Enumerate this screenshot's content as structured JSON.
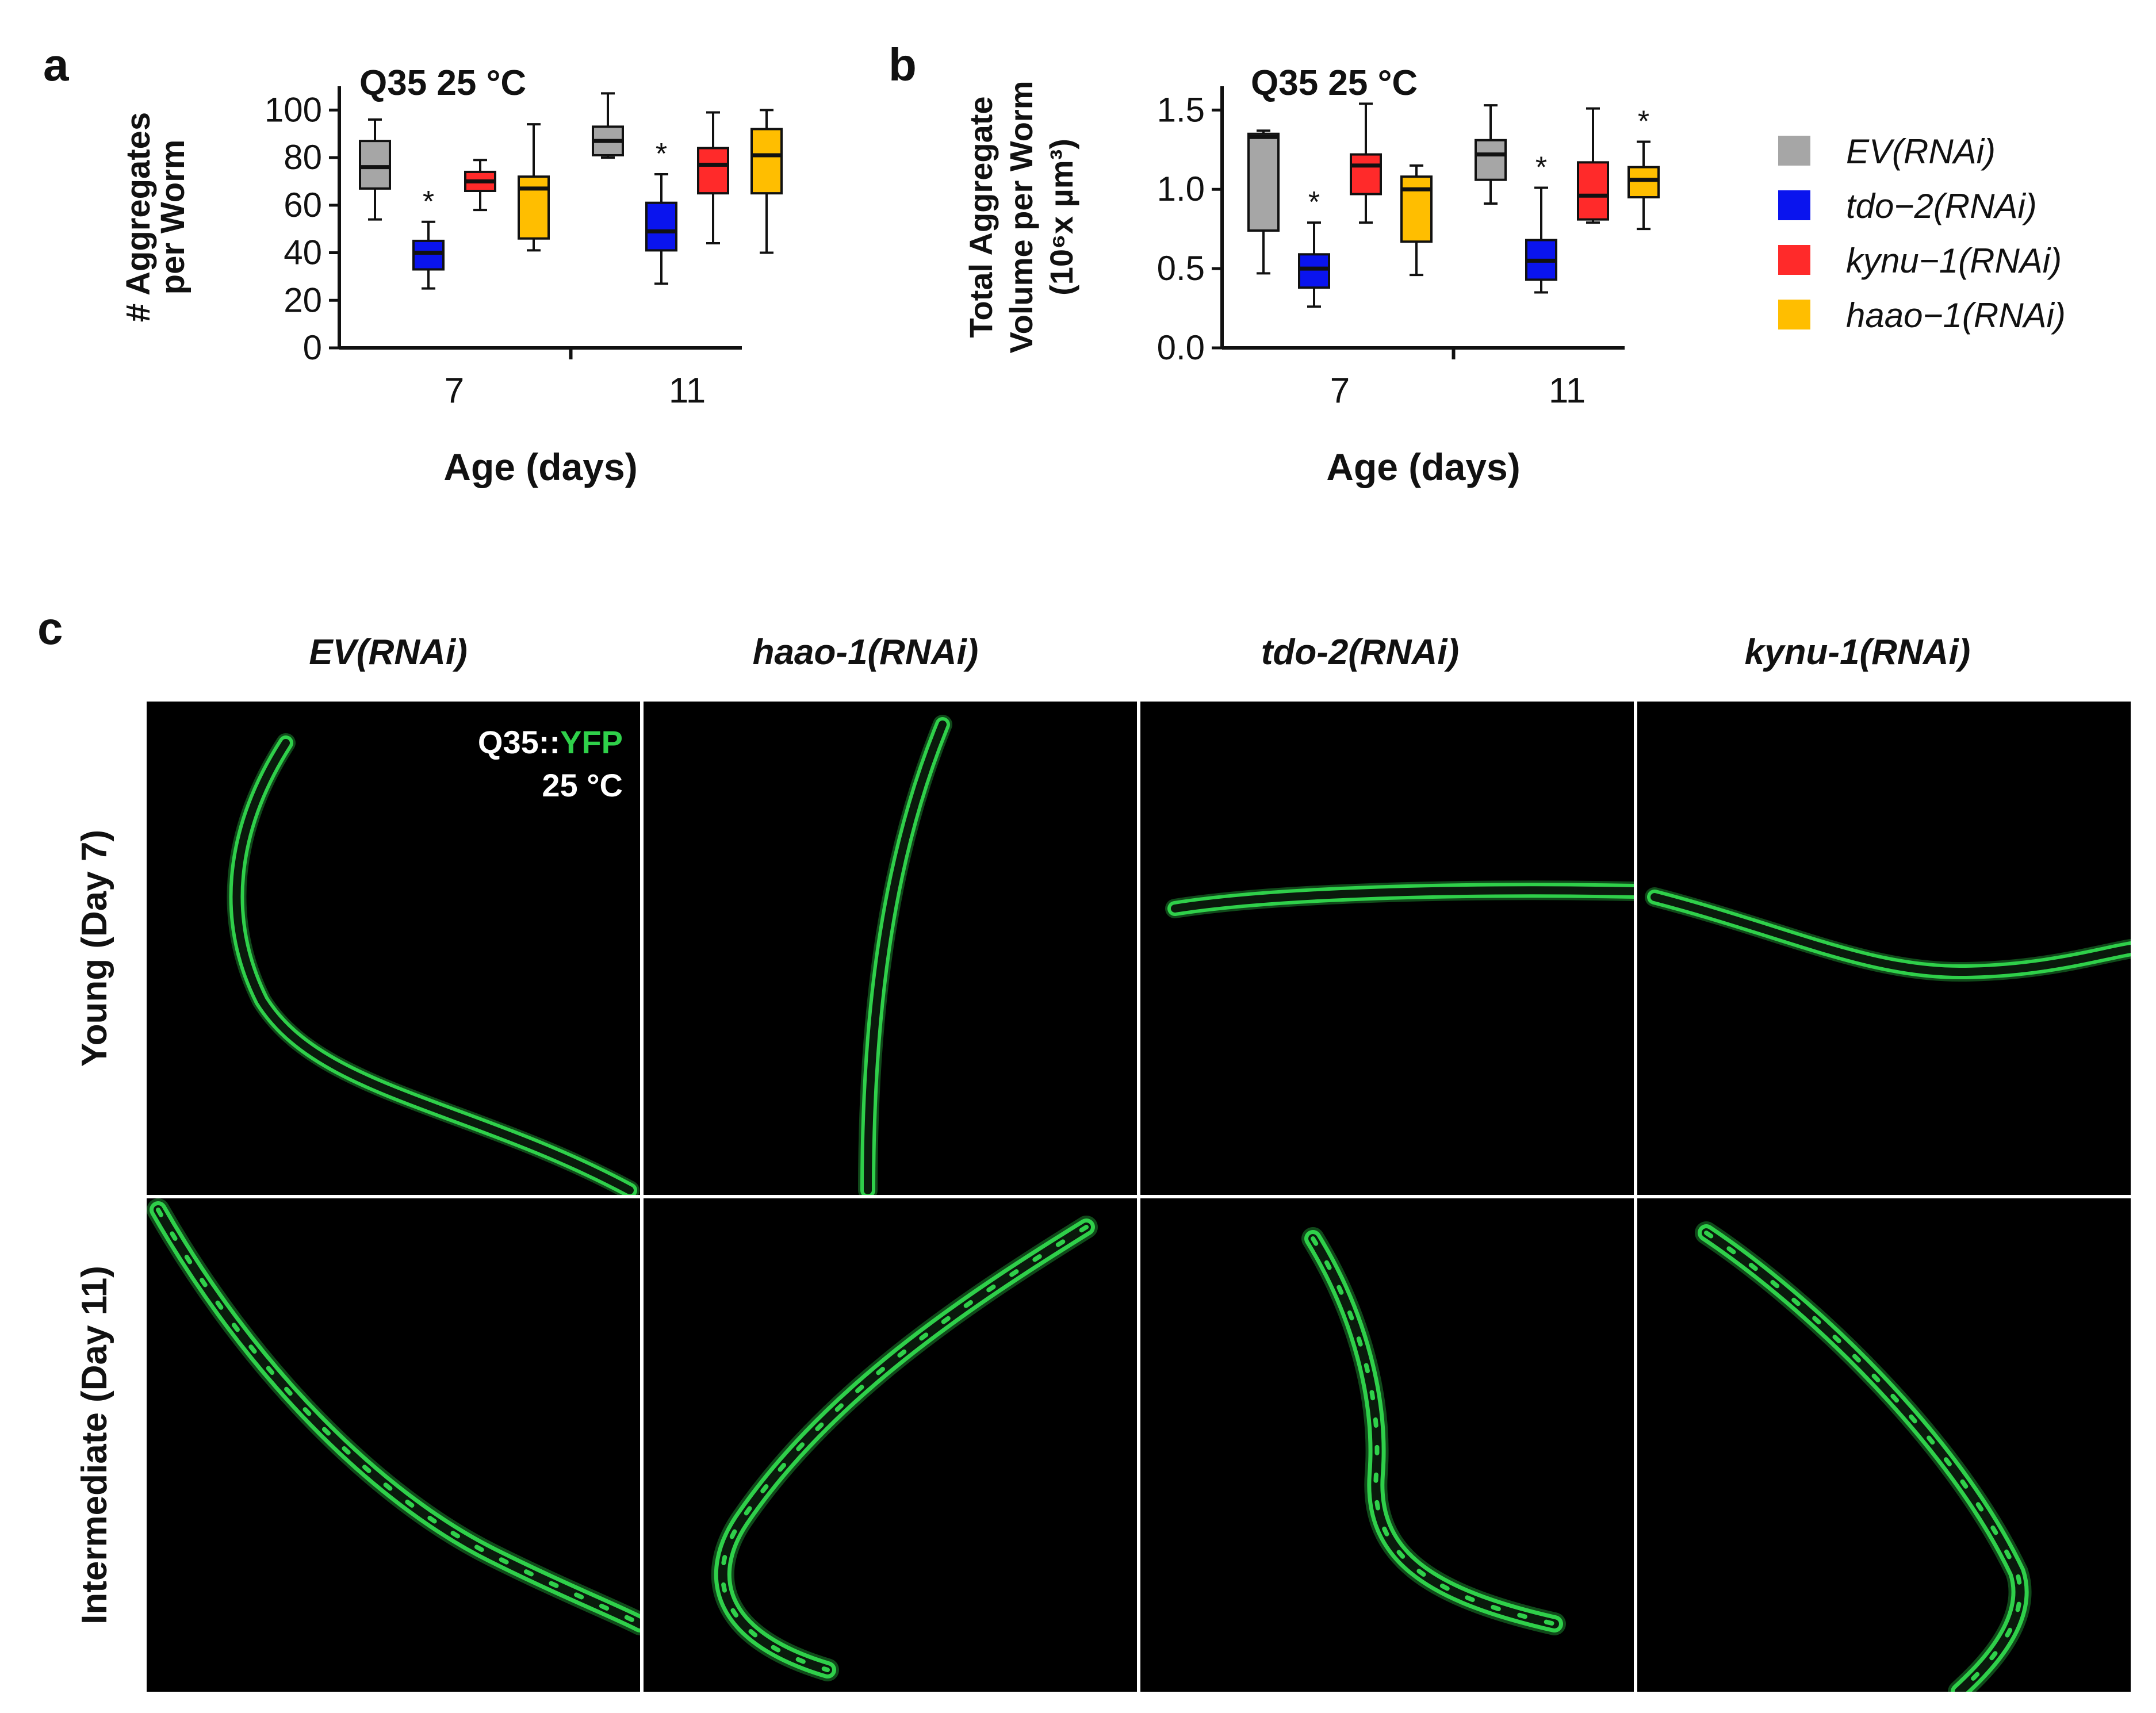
{
  "panels": {
    "a": {
      "letter": "a",
      "condition": "Q35 25 °C"
    },
    "b": {
      "letter": "b",
      "condition": "Q35 25 °C"
    },
    "c": {
      "letter": "c"
    }
  },
  "legend": [
    {
      "label": "EV(RNAi)",
      "color": "#a6a6a6"
    },
    {
      "label": "tdo−2(RNAi)",
      "color": "#0a14ee"
    },
    {
      "label": "kynu−1(RNAi)",
      "color": "#ff2a2a"
    },
    {
      "label": "haao−1(RNAi)",
      "color": "#ffbe00"
    }
  ],
  "chart_data": [
    {
      "type": "box",
      "panel": "a",
      "ylabel": [
        "# Aggregates",
        "per Worm"
      ],
      "xlabel": "Age (days)",
      "categories": [
        "7",
        "11"
      ],
      "ylim": [
        0,
        110
      ],
      "yticks": [
        0,
        20,
        40,
        60,
        80,
        100
      ],
      "series": [
        {
          "name": "EV(RNAi)",
          "boxes": [
            {
              "min": 54,
              "q1": 67,
              "median": 76,
              "q3": 87,
              "max": 96
            },
            {
              "min": 80,
              "q1": 81,
              "median": 87,
              "q3": 93,
              "max": 107
            }
          ]
        },
        {
          "name": "tdo−2(RNAi)",
          "boxes": [
            {
              "min": 25,
              "q1": 33,
              "median": 40,
              "q3": 45,
              "max": 53
            },
            {
              "min": 27,
              "q1": 41,
              "median": 49,
              "q3": 61,
              "max": 73
            }
          ]
        },
        {
          "name": "kynu−1(RNAi)",
          "boxes": [
            {
              "min": 58,
              "q1": 66,
              "median": 70,
              "q3": 74,
              "max": 79
            },
            {
              "min": 44,
              "q1": 65,
              "median": 77,
              "q3": 84,
              "max": 99
            }
          ]
        },
        {
          "name": "haao−1(RNAi)",
          "boxes": [
            {
              "min": 41,
              "q1": 46,
              "median": 67,
              "q3": 72,
              "max": 94
            },
            {
              "min": 40,
              "q1": 65,
              "median": 81,
              "q3": 92,
              "max": 100
            }
          ]
        }
      ],
      "significance": [
        {
          "series": "tdo−2(RNAi)",
          "category": "7",
          "label": "*"
        },
        {
          "series": "tdo−2(RNAi)",
          "category": "11",
          "label": "*"
        }
      ]
    },
    {
      "type": "box",
      "panel": "b",
      "ylabel": [
        "Total Aggregate",
        "Volume per Worm",
        "(10⁶x µm³)"
      ],
      "xlabel": "Age (days)",
      "categories": [
        "7",
        "11"
      ],
      "ylim": [
        0,
        1.65
      ],
      "yticks": [
        0.0,
        0.5,
        1.0,
        1.5
      ],
      "yticklabels": [
        "0.0",
        "0.5",
        "1.0",
        "1.5"
      ],
      "series": [
        {
          "name": "EV(RNAi)",
          "boxes": [
            {
              "min": 0.47,
              "q1": 0.74,
              "median": 1.33,
              "q3": 1.35,
              "max": 1.37
            },
            {
              "min": 0.91,
              "q1": 1.06,
              "median": 1.22,
              "q3": 1.31,
              "max": 1.53
            }
          ]
        },
        {
          "name": "tdo−2(RNAi)",
          "boxes": [
            {
              "min": 0.26,
              "q1": 0.38,
              "median": 0.5,
              "q3": 0.59,
              "max": 0.79
            },
            {
              "min": 0.35,
              "q1": 0.43,
              "median": 0.55,
              "q3": 0.68,
              "max": 1.01
            }
          ]
        },
        {
          "name": "kynu−1(RNAi)",
          "boxes": [
            {
              "min": 0.79,
              "q1": 0.97,
              "median": 1.15,
              "q3": 1.22,
              "max": 1.54
            },
            {
              "min": 0.79,
              "q1": 0.81,
              "median": 0.96,
              "q3": 1.17,
              "max": 1.51
            }
          ]
        },
        {
          "name": "haao−1(RNAi)",
          "boxes": [
            {
              "min": 0.46,
              "q1": 0.67,
              "median": 1.0,
              "q3": 1.08,
              "max": 1.15
            },
            {
              "min": 0.75,
              "q1": 0.95,
              "median": 1.06,
              "q3": 1.14,
              "max": 1.3
            }
          ]
        }
      ],
      "significance": [
        {
          "series": "tdo−2(RNAi)",
          "category": "7",
          "label": "*"
        },
        {
          "series": "tdo−2(RNAi)",
          "category": "11",
          "label": "*"
        },
        {
          "series": "haao−1(RNAi)",
          "category": "11",
          "label": "*"
        }
      ]
    }
  ],
  "micrographs": {
    "columns": [
      "EV(RNAi)",
      "haao-1(RNAi)",
      "tdo-2(RNAi)",
      "kynu-1(RNAi)"
    ],
    "rows": [
      "Young (Day 7)",
      "Intermediate (Day 11)"
    ],
    "reporter": {
      "prefix": "Q35::",
      "fluor": "YFP",
      "temperature": "25 °C"
    },
    "fluor_color": "#2fd04a"
  }
}
